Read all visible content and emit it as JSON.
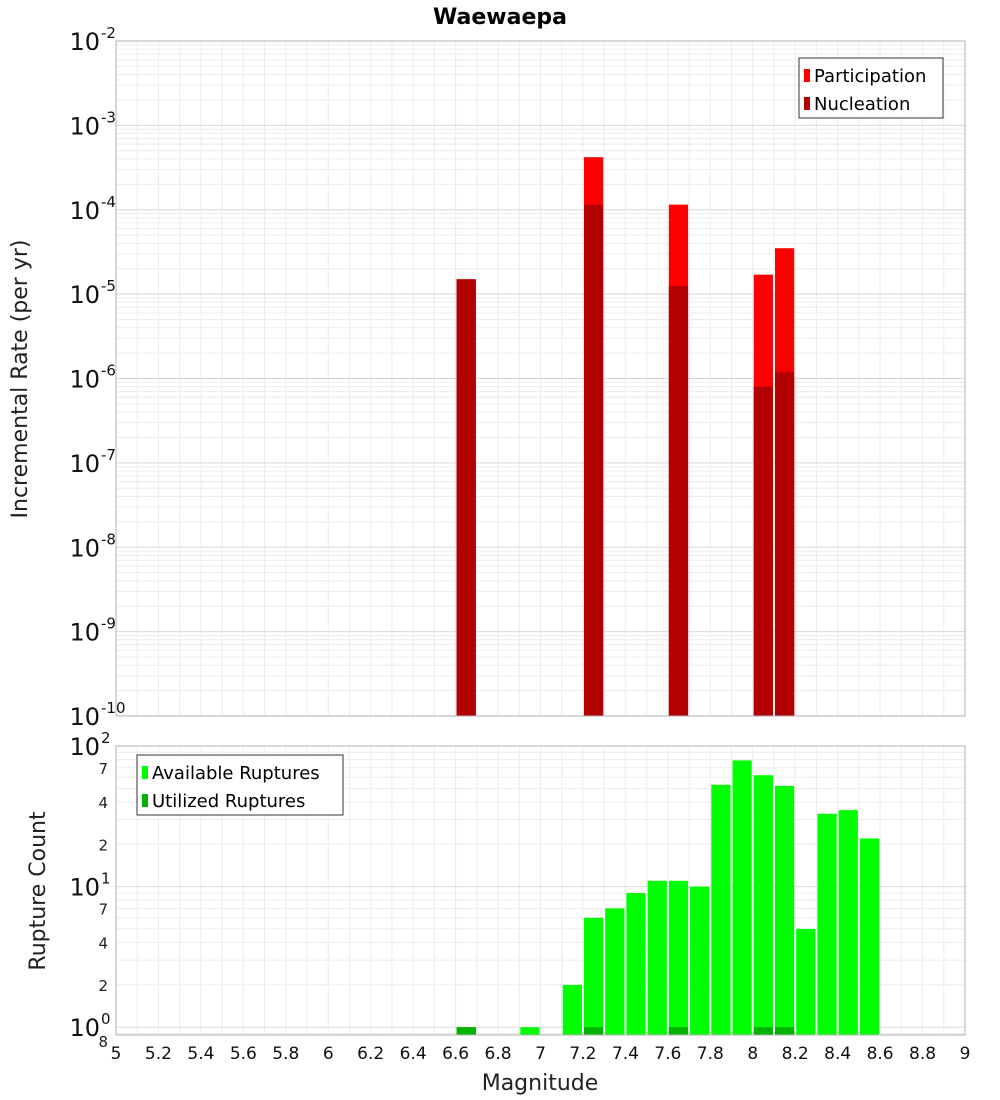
{
  "chart_data": {
    "type": "bar",
    "title": "Waewaepa",
    "xlabel": "Magnitude",
    "xlim": [
      5,
      9
    ],
    "x_ticks": [
      "5",
      "5.2",
      "5.4",
      "5.6",
      "5.8",
      "6",
      "6.2",
      "6.4",
      "6.6",
      "6.8",
      "7",
      "7.2",
      "7.4",
      "7.6",
      "7.8",
      "8",
      "8.2",
      "8.4",
      "8.6",
      "8.8",
      "9"
    ],
    "panels": [
      {
        "ylabel": "Incremental Rate (per yr)",
        "yscale": "log",
        "ylim": [
          1e-10,
          0.01
        ],
        "y_major_exponents": [
          "-10",
          "-9",
          "-8",
          "-7",
          "-6",
          "-5",
          "-4",
          "-3",
          "-2"
        ],
        "legend": {
          "placement": "top-right"
        },
        "series": [
          {
            "name": "Participation",
            "color": "#ff0000",
            "points": [
              {
                "x": 6.65,
                "y": 1.5e-05
              },
              {
                "x": 7.25,
                "y": 0.00042
              },
              {
                "x": 7.65,
                "y": 0.000115
              },
              {
                "x": 8.05,
                "y": 1.7e-05
              },
              {
                "x": 8.15,
                "y": 3.5e-05
              }
            ]
          },
          {
            "name": "Nucleation",
            "color": "#b30000",
            "points": [
              {
                "x": 6.65,
                "y": 1.5e-05
              },
              {
                "x": 7.25,
                "y": 0.000115
              },
              {
                "x": 7.65,
                "y": 1.25e-05
              },
              {
                "x": 8.05,
                "y": 8e-07
              },
              {
                "x": 8.15,
                "y": 1.2e-06
              }
            ]
          }
        ]
      },
      {
        "ylabel": "Rupture Count",
        "yscale": "log",
        "ylim": [
          0.88,
          100
        ],
        "y_major_exponents": [
          "0",
          "1",
          "2"
        ],
        "y_minor_ticks": [
          {
            "value": 0.8,
            "label": "8"
          },
          {
            "value": 2,
            "label": "2"
          },
          {
            "value": 4,
            "label": "4"
          },
          {
            "value": 7,
            "label": "7"
          },
          {
            "value": 20,
            "label": "2"
          },
          {
            "value": 40,
            "label": "4"
          },
          {
            "value": 70,
            "label": "7"
          }
        ],
        "legend": {
          "placement": "top-left"
        },
        "series": [
          {
            "name": "Available Ruptures",
            "color": "#00ff00",
            "points": [
              {
                "x": 6.65,
                "y": 1
              },
              {
                "x": 6.95,
                "y": 1
              },
              {
                "x": 7.15,
                "y": 2
              },
              {
                "x": 7.25,
                "y": 6
              },
              {
                "x": 7.35,
                "y": 7
              },
              {
                "x": 7.45,
                "y": 9
              },
              {
                "x": 7.55,
                "y": 11
              },
              {
                "x": 7.65,
                "y": 11
              },
              {
                "x": 7.75,
                "y": 10
              },
              {
                "x": 7.85,
                "y": 53
              },
              {
                "x": 7.95,
                "y": 79
              },
              {
                "x": 8.05,
                "y": 62
              },
              {
                "x": 8.15,
                "y": 52
              },
              {
                "x": 8.25,
                "y": 5
              },
              {
                "x": 8.35,
                "y": 33
              },
              {
                "x": 8.45,
                "y": 35
              },
              {
                "x": 8.55,
                "y": 22
              }
            ]
          },
          {
            "name": "Utilized Ruptures",
            "color": "#00b300",
            "points": [
              {
                "x": 6.65,
                "y": 1
              },
              {
                "x": 7.25,
                "y": 1
              },
              {
                "x": 7.65,
                "y": 1
              },
              {
                "x": 8.05,
                "y": 1
              },
              {
                "x": 8.15,
                "y": 1
              }
            ]
          }
        ]
      }
    ]
  }
}
